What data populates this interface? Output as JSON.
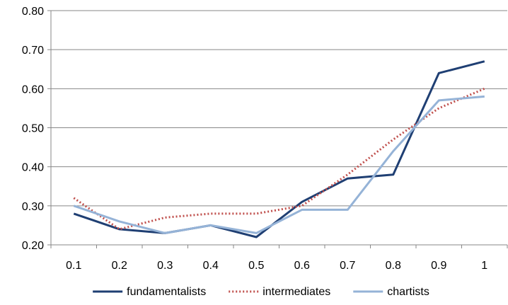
{
  "chart_data": {
    "type": "line",
    "title": "",
    "xlabel": "",
    "ylabel": "",
    "x": [
      "0.1",
      "0.2",
      "0.3",
      "0.4",
      "0.5",
      "0.6",
      "0.7",
      "0.8",
      "0.9",
      "1"
    ],
    "ylim": [
      0.2,
      0.8
    ],
    "yticks": [
      "0.20",
      "0.30",
      "0.40",
      "0.50",
      "0.60",
      "0.70",
      "0.80"
    ],
    "grid": true,
    "legend_position": "bottom",
    "series": [
      {
        "name": "fundamentalists",
        "color": "#1f3f73",
        "style": "solid",
        "values": [
          0.28,
          0.24,
          0.23,
          0.25,
          0.22,
          0.31,
          0.37,
          0.38,
          0.64,
          0.67
        ]
      },
      {
        "name": "intermediates",
        "color": "#c0504d",
        "style": "dotted",
        "values": [
          0.32,
          0.24,
          0.27,
          0.28,
          0.28,
          0.3,
          0.38,
          0.47,
          0.55,
          0.6
        ]
      },
      {
        "name": "chartists",
        "color": "#95b3d7",
        "style": "solid",
        "values": [
          0.3,
          0.26,
          0.23,
          0.25,
          0.23,
          0.29,
          0.29,
          0.44,
          0.57,
          0.58
        ]
      }
    ]
  }
}
